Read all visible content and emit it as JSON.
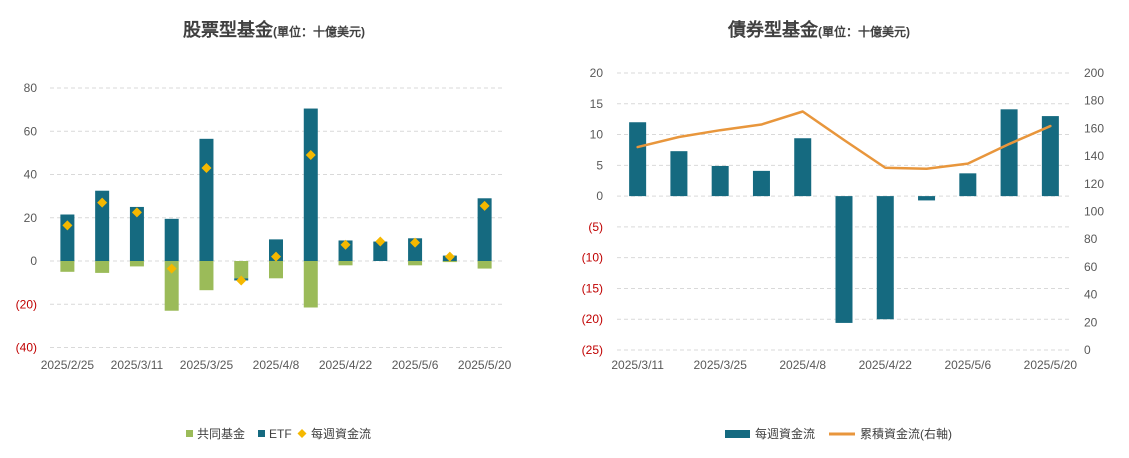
{
  "colors": {
    "negative_label": "#c00000",
    "title": "#404040",
    "axis_label": "#595959"
  },
  "chart_data": [
    {
      "type": "bar",
      "stacked": true,
      "title": "股票型基金",
      "unit": "(單位：十億美元)",
      "grid": true,
      "legend_position": "bottom",
      "x_labels": [
        "2025/2/25",
        "",
        "2025/3/11",
        "",
        "2025/3/25",
        "",
        "2025/4/8",
        "",
        "2025/4/22",
        "",
        "2025/5/6",
        "",
        "2025/5/20"
      ],
      "y_axis": {
        "range": [
          -40,
          80
        ],
        "ticks": [
          -40,
          -20,
          0,
          20,
          40,
          60,
          80
        ],
        "labels": [
          "(40)",
          "(20)",
          "0",
          "20",
          "40",
          "60",
          "80"
        ]
      },
      "series": [
        {
          "name": "共同基金",
          "type": "bar",
          "color": "#9bbb59",
          "values": [
            -5,
            -5.5,
            -2.5,
            -23,
            -13.5,
            -8,
            -8,
            -21.5,
            -2,
            0,
            -2,
            -0.5,
            -3.5
          ]
        },
        {
          "name": "ETF",
          "type": "bar",
          "color": "#156a80",
          "values": [
            21.5,
            32.5,
            25,
            19.5,
            56.5,
            -1,
            10,
            70.5,
            9.5,
            9,
            10.5,
            2.5,
            29
          ]
        },
        {
          "name": "每週資金流",
          "type": "marker",
          "color": "#f5b800",
          "values": [
            16.5,
            27,
            22.5,
            -3.5,
            43,
            -9,
            2,
            49,
            7.5,
            9,
            8.5,
            2,
            25.5
          ]
        }
      ]
    },
    {
      "type": "bar",
      "title": "債券型基金",
      "unit": "(單位：十億美元)",
      "grid": true,
      "legend_position": "bottom",
      "x_labels": [
        "2025/3/11",
        "",
        "2025/3/25",
        "",
        "2025/4/8",
        "",
        "2025/4/22",
        "",
        "2025/5/6",
        "",
        "2025/5/20"
      ],
      "y_axis": {
        "range": [
          -25,
          20
        ],
        "ticks": [
          -25,
          -20,
          -15,
          -10,
          -5,
          0,
          5,
          10,
          15,
          20
        ],
        "labels": [
          "(25)",
          "(20)",
          "(15)",
          "(10)",
          "(5)",
          "0",
          "5",
          "10",
          "15",
          "20"
        ]
      },
      "y2_axis": {
        "range": [
          0,
          200
        ],
        "ticks": [
          0,
          20,
          40,
          60,
          80,
          100,
          120,
          140,
          160,
          180,
          200
        ],
        "labels": [
          "0",
          "20",
          "40",
          "60",
          "80",
          "100",
          "120",
          "140",
          "160",
          "180",
          "200"
        ]
      },
      "series": [
        {
          "name": "每週資金流",
          "type": "bar",
          "axis": "left",
          "color": "#156a80",
          "values": [
            12,
            7.3,
            4.9,
            4.1,
            9.4,
            -20.6,
            -20,
            -0.7,
            3.7,
            14.1,
            13
          ]
        },
        {
          "name": "累積資金流(右軸)",
          "type": "line",
          "axis": "right",
          "color": "#e8963c",
          "values": [
            146.5,
            153.8,
            158.7,
            162.8,
            172.2,
            151.6,
            131.6,
            130.9,
            134.6,
            148.7,
            161.7
          ]
        }
      ]
    }
  ]
}
